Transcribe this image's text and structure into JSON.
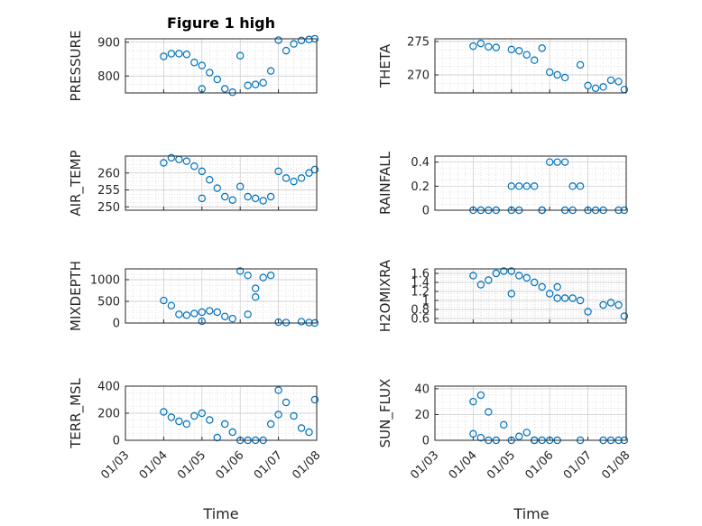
{
  "figure": {
    "title": "Figure 1 high",
    "xlabel": "Time",
    "colors": {
      "marker": "#0072BD",
      "axis": "#262626",
      "grid": "#c8c8c8"
    }
  },
  "chart_data": [
    {
      "id": "pressure",
      "type": "scatter",
      "ylabel": "PRESSURE",
      "xlim": [
        "01/03",
        "01/08"
      ],
      "ylim": [
        750,
        910
      ],
      "yticks": [
        800,
        900
      ],
      "grid": true,
      "x": [
        "01/04",
        "01/04",
        "01/04",
        "01/04",
        "01/04",
        "01/05",
        "01/05",
        "01/05",
        "01/05",
        "01/05",
        "01/05",
        "01/06",
        "01/06",
        "01/06",
        "01/06",
        "01/06",
        "01/07",
        "01/07",
        "01/07",
        "01/07",
        "01/07",
        "01/08"
      ],
      "y": [
        858,
        866,
        866,
        864,
        840,
        831,
        810,
        790,
        762,
        752,
        762,
        772,
        775,
        780,
        815,
        860,
        875,
        895,
        905,
        908,
        906,
        910
      ]
    },
    {
      "id": "theta",
      "type": "scatter",
      "ylabel": "THETA",
      "xlim": [
        "01/03",
        "01/08"
      ],
      "ylim": [
        267.3,
        275.4
      ],
      "yticks": [
        270,
        275
      ],
      "grid": true,
      "x": [
        "01/04",
        "01/04",
        "01/04",
        "01/04",
        "01/05",
        "01/05",
        "01/05",
        "01/05",
        "01/05",
        "01/06",
        "01/06",
        "01/06",
        "01/06",
        "01/07",
        "01/07",
        "01/07",
        "01/07",
        "01/07",
        "01/08"
      ],
      "y": [
        274.3,
        274.7,
        274.2,
        274.1,
        274.0,
        273.8,
        273.6,
        273.0,
        272.2,
        271.5,
        270.4,
        270.0,
        269.6,
        269.2,
        269.0,
        268.4,
        268.0,
        268.2,
        267.8
      ]
    },
    {
      "id": "air_temp",
      "type": "scatter",
      "ylabel": "AIR_TEMP",
      "xlim": [
        "01/03",
        "01/08"
      ],
      "ylim": [
        249,
        265
      ],
      "yticks": [
        250,
        255,
        260
      ],
      "grid": true,
      "x": [
        "01/04",
        "01/04",
        "01/04",
        "01/04",
        "01/04",
        "01/05",
        "01/05",
        "01/05",
        "01/05",
        "01/05",
        "01/05",
        "01/06",
        "01/06",
        "01/06",
        "01/06",
        "01/06",
        "01/07",
        "01/07",
        "01/07",
        "01/07",
        "01/07",
        "01/08"
      ],
      "y": [
        263,
        264.5,
        264,
        263.5,
        262,
        260.5,
        258,
        255.5,
        253,
        252,
        252.5,
        253,
        252.5,
        251.8,
        253,
        256,
        258.5,
        257.5,
        258.5,
        260,
        260.5,
        261
      ]
    },
    {
      "id": "rainfall",
      "type": "scatter",
      "ylabel": "RAINFALL",
      "xlim": [
        "01/03",
        "01/08"
      ],
      "ylim": [
        0,
        0.45
      ],
      "yticks": [
        0,
        0.2,
        0.4
      ],
      "grid": true,
      "x": [
        "01/04",
        "01/04",
        "01/04",
        "01/04",
        "01/05",
        "01/05",
        "01/05",
        "01/05",
        "01/05",
        "01/05",
        "01/05",
        "01/05",
        "01/06",
        "01/06",
        "01/06",
        "01/06",
        "01/06",
        "01/06",
        "01/06",
        "01/07",
        "01/07",
        "01/07",
        "01/07",
        "01/08"
      ],
      "y": [
        0,
        0,
        0,
        0,
        0,
        0.2,
        0.2,
        0.2,
        0.2,
        0,
        0,
        0,
        0,
        0.2,
        0.2,
        0.4,
        0.4,
        0.4,
        0,
        0,
        0,
        0,
        0,
        0
      ]
    },
    {
      "id": "mixdepth",
      "type": "scatter",
      "ylabel": "MIXDEPTH",
      "xlim": [
        "01/03",
        "01/08"
      ],
      "ylim": [
        0,
        1250
      ],
      "yticks": [
        0,
        500,
        1000
      ],
      "grid": true,
      "x": [
        "01/04",
        "01/04",
        "01/04",
        "01/04",
        "01/04",
        "01/05",
        "01/05",
        "01/05",
        "01/05",
        "01/05",
        "01/05",
        "01/06",
        "01/06",
        "01/06",
        "01/06",
        "01/06",
        "01/06",
        "01/06",
        "01/07",
        "01/07",
        "01/07",
        "01/07",
        "01/08"
      ],
      "y": [
        520,
        400,
        200,
        180,
        220,
        250,
        280,
        250,
        150,
        100,
        40,
        200,
        600,
        1050,
        1100,
        1200,
        1100,
        800,
        30,
        10,
        20,
        10,
        0
      ]
    },
    {
      "id": "h2omixra",
      "type": "scatter",
      "ylabel": "H2OMIXRA",
      "xlim": [
        "01/03",
        "01/08"
      ],
      "ylim": [
        0.5,
        1.7
      ],
      "yticks": [
        0.6,
        0.8,
        1,
        1.2,
        1.4,
        1.6
      ],
      "grid": true,
      "x": [
        "01/04",
        "01/04",
        "01/04",
        "01/04",
        "01/04",
        "01/05",
        "01/05",
        "01/05",
        "01/05",
        "01/05",
        "01/05",
        "01/06",
        "01/06",
        "01/06",
        "01/06",
        "01/06",
        "01/06",
        "01/07",
        "01/07",
        "01/07",
        "01/07",
        "01/08"
      ],
      "y": [
        1.55,
        1.35,
        1.45,
        1.6,
        1.65,
        1.65,
        1.55,
        1.5,
        1.4,
        1.3,
        1.15,
        1.05,
        1.05,
        1.05,
        1.0,
        1.15,
        1.3,
        0.9,
        0.95,
        0.9,
        0.75,
        0.65
      ]
    },
    {
      "id": "terr_msl",
      "type": "scatter",
      "ylabel": "TERR_MSL",
      "xlim": [
        "01/03",
        "01/08"
      ],
      "ylim": [
        0,
        400
      ],
      "yticks": [
        0,
        200,
        400
      ],
      "grid": true,
      "x": [
        "01/04",
        "01/04",
        "01/04",
        "01/04",
        "01/04",
        "01/05",
        "01/05",
        "01/05",
        "01/05",
        "01/05",
        "01/06",
        "01/06",
        "01/06",
        "01/06",
        "01/06",
        "01/07",
        "01/07",
        "01/07",
        "01/07",
        "01/07",
        "01/07",
        "01/08"
      ],
      "y": [
        210,
        170,
        140,
        120,
        180,
        200,
        150,
        20,
        120,
        60,
        0,
        0,
        0,
        0,
        120,
        370,
        280,
        180,
        90,
        60,
        190,
        300
      ]
    },
    {
      "id": "sun_flux",
      "type": "scatter",
      "ylabel": "SUN_FLUX",
      "xlim": [
        "01/03",
        "01/08"
      ],
      "ylim": [
        0,
        42
      ],
      "yticks": [
        0,
        20,
        40
      ],
      "grid": true,
      "x": [
        "01/04",
        "01/04",
        "01/04",
        "01/04",
        "01/04",
        "01/04",
        "01/04",
        "01/04",
        "01/05",
        "01/05",
        "01/05",
        "01/05",
        "01/05",
        "01/05",
        "01/06",
        "01/06",
        "01/06",
        "01/07",
        "01/07",
        "01/07",
        "01/08"
      ],
      "y": [
        5,
        2,
        0,
        0,
        12,
        30,
        35,
        22,
        0,
        0,
        0,
        3,
        6,
        0,
        0,
        0,
        0,
        0,
        0,
        0,
        0
      ]
    }
  ]
}
